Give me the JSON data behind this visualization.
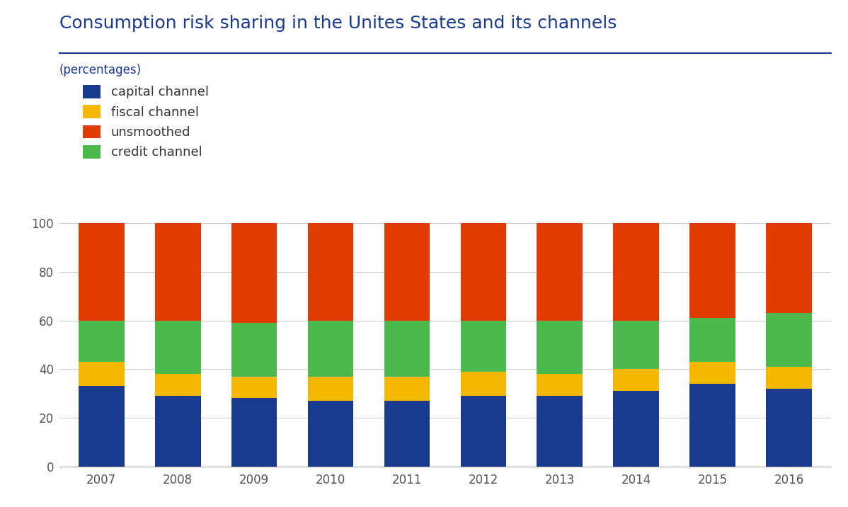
{
  "years": [
    2007,
    2008,
    2009,
    2010,
    2011,
    2012,
    2013,
    2014,
    2015,
    2016
  ],
  "capital": [
    33,
    29,
    28,
    27,
    27,
    29,
    29,
    31,
    34,
    32
  ],
  "fiscal": [
    10,
    9,
    9,
    10,
    10,
    10,
    9,
    9,
    9,
    9
  ],
  "credit": [
    17,
    22,
    22,
    23,
    23,
    21,
    22,
    20,
    18,
    22
  ],
  "unsmoothed": [
    40,
    40,
    41,
    40,
    40,
    40,
    40,
    40,
    39,
    37
  ],
  "colors": {
    "capital": "#1a3a8f",
    "fiscal": "#f5b800",
    "unsmoothed": "#e03b00",
    "credit": "#4db84e"
  },
  "title": "Consumption risk sharing in the Unites States and its channels",
  "ylabel": "(percentages)",
  "ylim": [
    0,
    100
  ],
  "legend_labels": [
    "capital channel",
    "fiscal channel",
    "unsmoothed",
    "credit channel"
  ],
  "title_color": "#1a3a8f",
  "label_color": "#1a3a8f",
  "tick_color": "#555555",
  "background_color": "#ffffff",
  "title_fontsize": 18,
  "label_fontsize": 12,
  "tick_fontsize": 12,
  "legend_fontsize": 13,
  "bar_width": 0.6
}
